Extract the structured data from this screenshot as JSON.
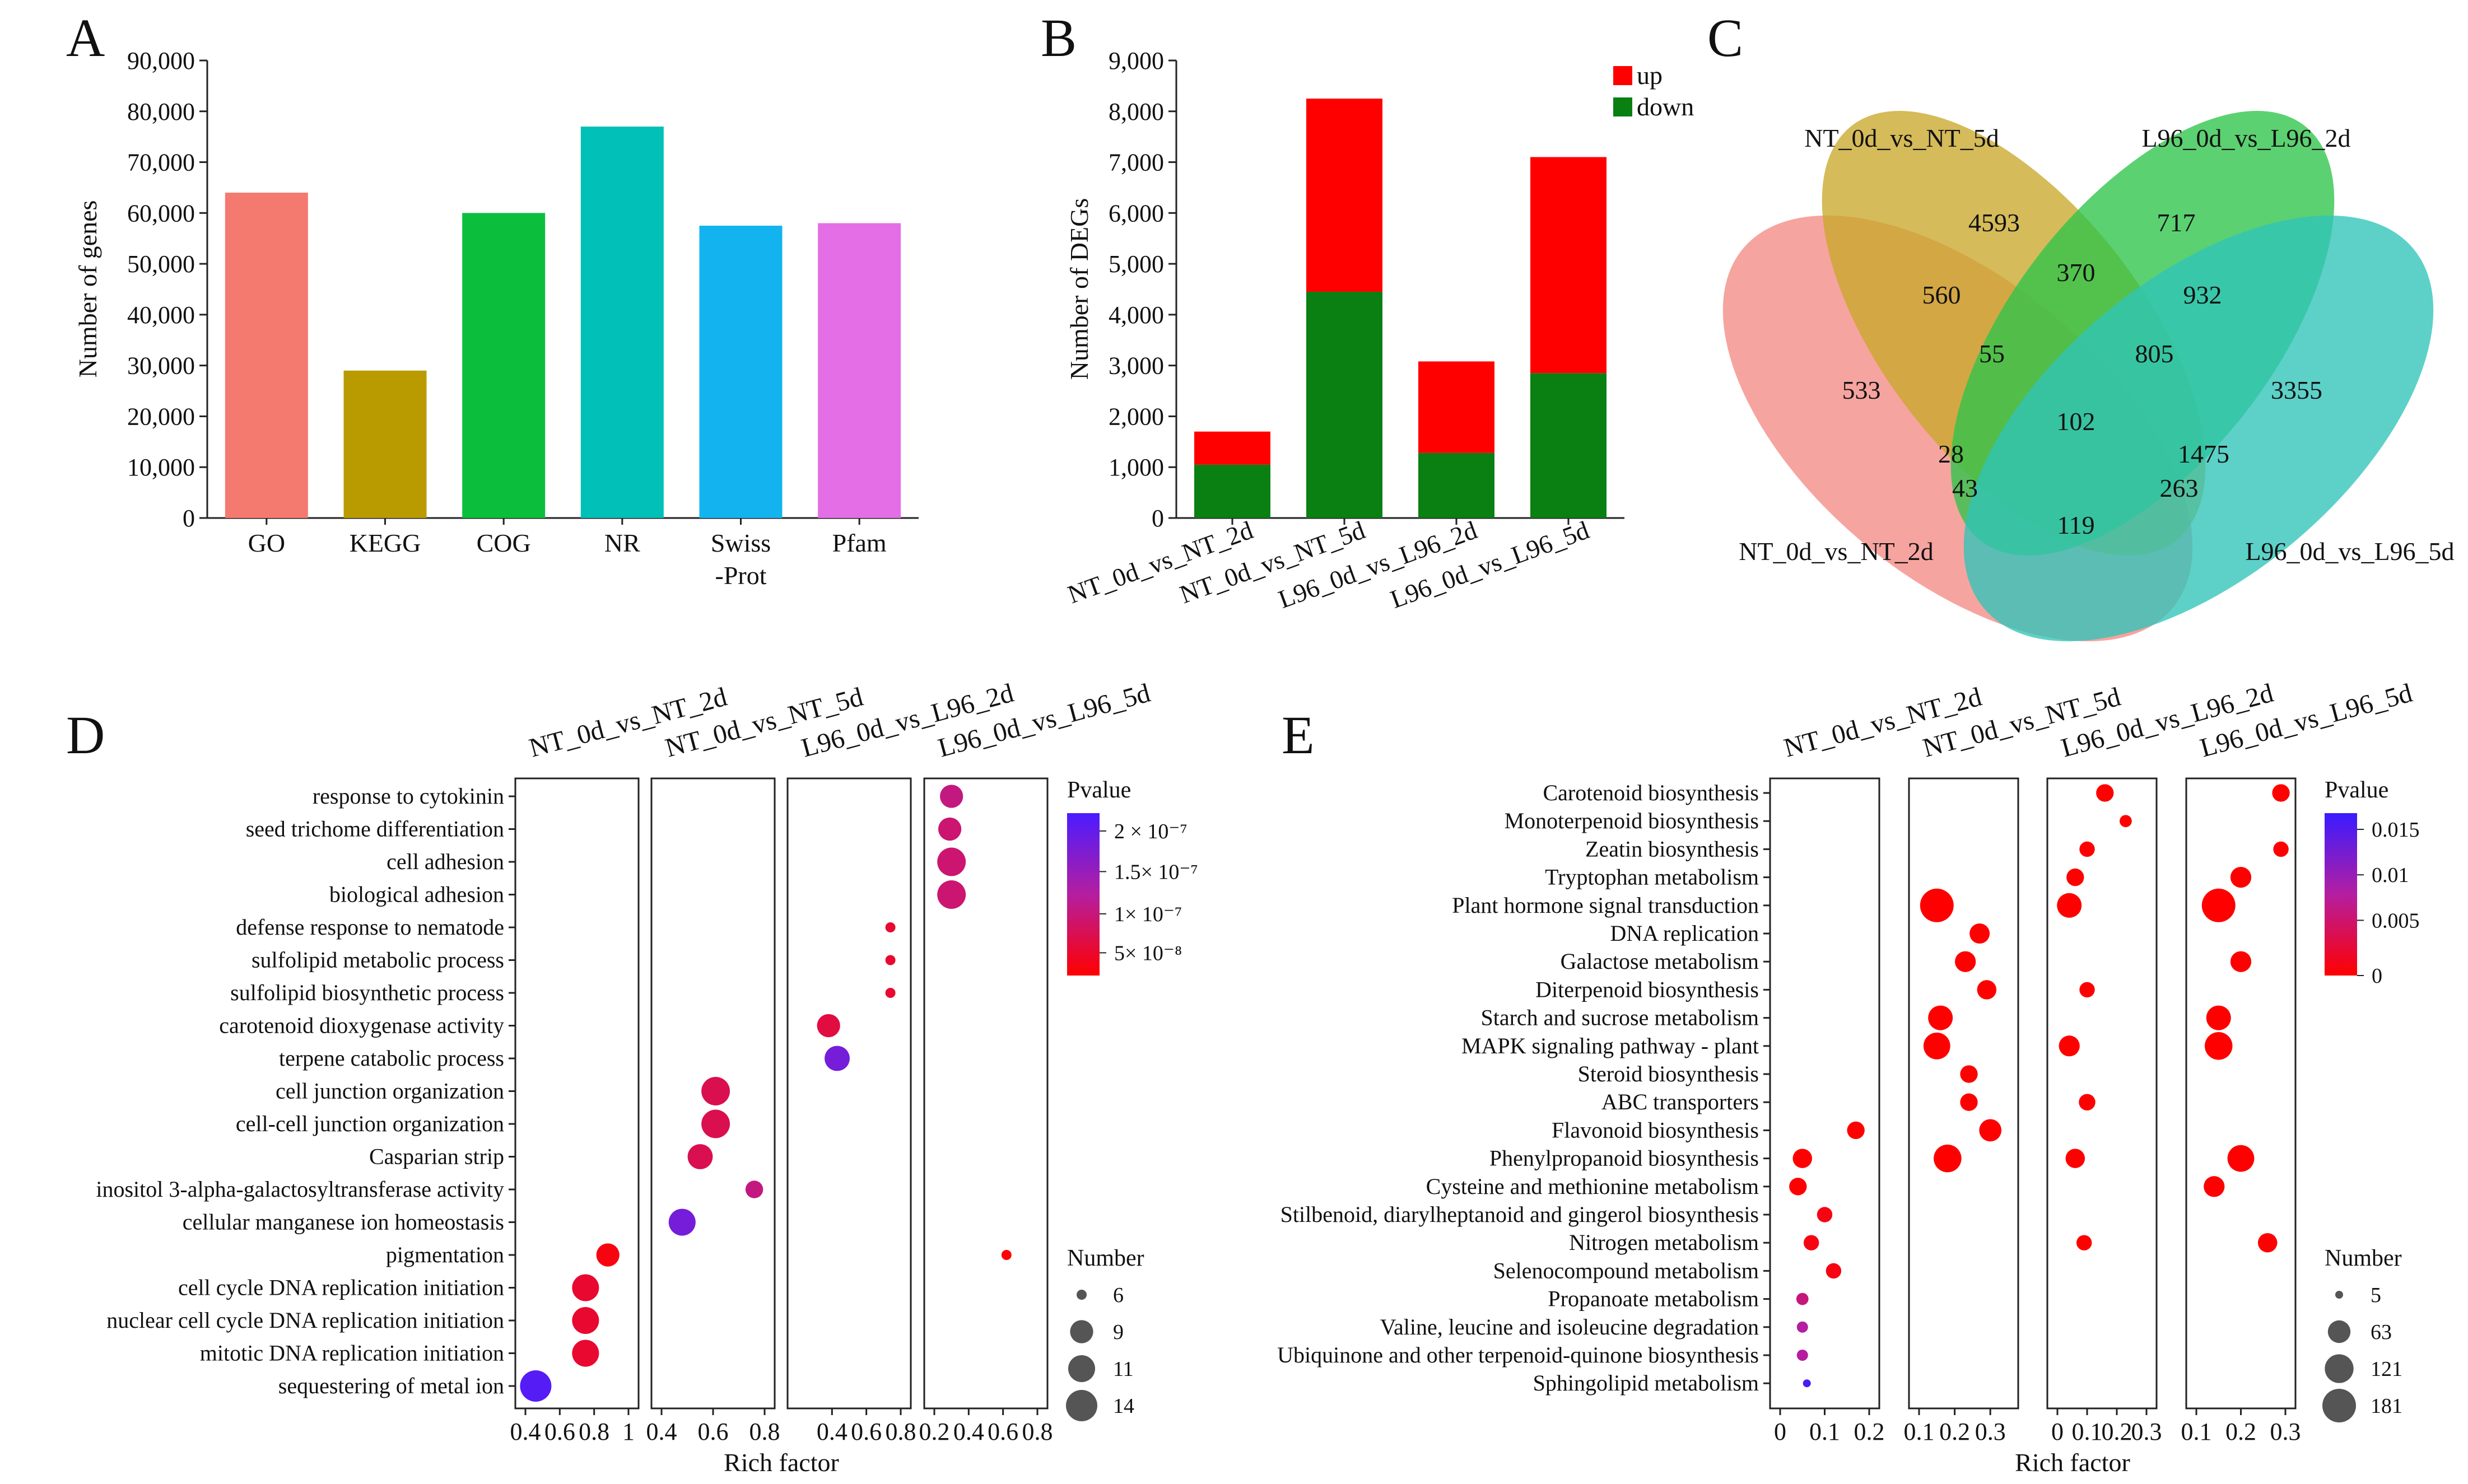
{
  "panels": {
    "a": "A",
    "b": "B",
    "c": "C",
    "d": "D",
    "e": "E"
  },
  "chart_data": [
    {
      "type": "bar",
      "panel": "A",
      "categories": [
        "GO",
        "KEGG",
        "COG",
        "NR",
        "Swiss\n-Prot",
        "Pfam"
      ],
      "values": [
        64000,
        29000,
        60000,
        77000,
        57500,
        58000
      ],
      "colors": [
        "#f47a6f",
        "#b99b00",
        "#0bbf3c",
        "#00c0b8",
        "#13b3f0",
        "#e46ee6"
      ],
      "title": "",
      "xlabel": "",
      "ylabel": "Number of genes",
      "ylim": [
        0,
        90000
      ],
      "yticks": [
        "0",
        "10,000",
        "20,000",
        "30,000",
        "40,000",
        "50,000",
        "60,000",
        "70,000",
        "80,000",
        "90,000"
      ]
    },
    {
      "type": "bar",
      "panel": "B",
      "stacked": true,
      "categories": [
        "NT_0d_vs_NT_2d",
        "NT_0d_vs_NT_5d",
        "L96_0d_vs_L96_2d",
        "L96_0d_vs_L96_5d"
      ],
      "series": [
        {
          "name": "down",
          "color": "#0a7f12",
          "values": [
            1050,
            4450,
            1280,
            2850
          ]
        },
        {
          "name": "up",
          "color": "#ff0000",
          "values": [
            650,
            3800,
            1800,
            4250
          ]
        }
      ],
      "legend": [
        "up",
        "down"
      ],
      "xlabel": "",
      "ylabel": "Number of DEGs",
      "ylim": [
        0,
        9000
      ],
      "yticks": [
        "0",
        "1,000",
        "2,000",
        "3,000",
        "4,000",
        "5,000",
        "6,000",
        "7,000",
        "8,000",
        "9,000"
      ]
    },
    {
      "type": "venn",
      "panel": "C",
      "sets": [
        "NT_0d_vs_NT_5d",
        "L96_0d_vs_L96_2d",
        "NT_0d_vs_NT_2d",
        "L96_0d_vs_L96_5d"
      ],
      "set_colors": [
        "#c9a82a",
        "#2ec44a",
        "#f38a85",
        "#2fc4b8"
      ],
      "regions": [
        "4593",
        "717",
        "560",
        "370",
        "932",
        "533",
        "55",
        "805",
        "3355",
        "102",
        "28",
        "1475",
        "43",
        "263",
        "119"
      ]
    },
    {
      "type": "scatter",
      "panel": "D",
      "subtype": "bubble-facet",
      "facets": [
        "NT_0d_vs_NT_2d",
        "NT_0d_vs_NT_5d",
        "L96_0d_vs_L96_2d",
        "L96_0d_vs_L96_5d"
      ],
      "facet_xlim": [
        [
          0.4,
          1.0
        ],
        [
          0.4,
          0.8
        ],
        [
          0.2,
          0.8
        ],
        [
          0.2,
          0.8
        ]
      ],
      "facet_xticks": [
        [
          "0.4",
          "0.6",
          "0.8",
          "1"
        ],
        [
          "0.4",
          "0.6",
          "0.8"
        ],
        [
          "0.4",
          "0.6",
          "0.8"
        ],
        [
          "0.2",
          "0.4",
          "0.6",
          "0.8"
        ]
      ],
      "categories": [
        "response to cytokinin",
        "seed trichome differentiation",
        "cell adhesion",
        "biological adhesion",
        "defense response to nematode",
        "sulfolipid metabolic process",
        "sulfolipid biosynthetic process",
        "carotenoid dioxygenase activity",
        "terpene catabolic process",
        "cell junction organization",
        "cell-cell junction organization",
        "Casparian strip",
        "inositol 3-alpha-galactosyltransferase activity",
        "cellular manganese ion homeostasis",
        "pigmentation",
        "cell cycle DNA replication initiation",
        "nuclear cell cycle DNA replication initiation",
        "mitotic DNA replication initiation",
        "sequestering of metal ion"
      ],
      "points": [
        {
          "facet": 3,
          "cat": 0,
          "x": 0.3,
          "p": 1.1e-07,
          "n": 9
        },
        {
          "facet": 3,
          "cat": 1,
          "x": 0.29,
          "p": 1e-07,
          "n": 9
        },
        {
          "facet": 3,
          "cat": 2,
          "x": 0.3,
          "p": 1e-07,
          "n": 12
        },
        {
          "facet": 3,
          "cat": 3,
          "x": 0.3,
          "p": 1e-07,
          "n": 12
        },
        {
          "facet": 2,
          "cat": 4,
          "x": 0.74,
          "p": 6e-08,
          "n": 6
        },
        {
          "facet": 2,
          "cat": 5,
          "x": 0.74,
          "p": 6e-08,
          "n": 6
        },
        {
          "facet": 2,
          "cat": 6,
          "x": 0.74,
          "p": 6e-08,
          "n": 6
        },
        {
          "facet": 2,
          "cat": 7,
          "x": 0.38,
          "p": 7e-08,
          "n": 9
        },
        {
          "facet": 2,
          "cat": 8,
          "x": 0.43,
          "p": 1.9e-07,
          "n": 10
        },
        {
          "facet": 1,
          "cat": 9,
          "x": 0.61,
          "p": 8e-08,
          "n": 12
        },
        {
          "facet": 1,
          "cat": 10,
          "x": 0.61,
          "p": 8e-08,
          "n": 12
        },
        {
          "facet": 1,
          "cat": 11,
          "x": 0.55,
          "p": 8e-08,
          "n": 10
        },
        {
          "facet": 1,
          "cat": 12,
          "x": 0.76,
          "p": 1.1e-07,
          "n": 7
        },
        {
          "facet": 1,
          "cat": 13,
          "x": 0.48,
          "p": 1.9e-07,
          "n": 11
        },
        {
          "facet": 3,
          "cat": 14,
          "x": 0.62,
          "p": 3e-08,
          "n": 6
        },
        {
          "facet": 0,
          "cat": 14,
          "x": 0.88,
          "p": 4e-08,
          "n": 9
        },
        {
          "facet": 0,
          "cat": 15,
          "x": 0.75,
          "p": 6e-08,
          "n": 11
        },
        {
          "facet": 0,
          "cat": 16,
          "x": 0.75,
          "p": 6e-08,
          "n": 11
        },
        {
          "facet": 0,
          "cat": 17,
          "x": 0.75,
          "p": 6e-08,
          "n": 11
        },
        {
          "facet": 0,
          "cat": 18,
          "x": 0.46,
          "p": 2.2e-07,
          "n": 14
        }
      ],
      "xlabel": "Rich factor",
      "color_legend": {
        "title": "Pvalue",
        "labels": [
          "2 × 10⁻⁷",
          "1.5× 10⁻⁷",
          "1× 10⁻⁷",
          "5× 10⁻⁸"
        ],
        "range": [
          3e-08,
          2.3e-07
        ],
        "low_color": "#ff0000",
        "high_color": "#4b1cff"
      },
      "size_legend": {
        "title": "Number",
        "values": [
          6,
          9,
          11,
          14
        ],
        "labels": [
          "6",
          "9",
          "11",
          "14"
        ]
      }
    },
    {
      "type": "scatter",
      "panel": "E",
      "subtype": "bubble-facet",
      "facets": [
        "NT_0d_vs_NT_2d",
        "NT_0d_vs_NT_5d",
        "L96_0d_vs_L96_2d",
        "L96_0d_vs_L96_5d"
      ],
      "facet_xlim": [
        [
          0,
          0.2
        ],
        [
          0.1,
          0.35
        ],
        [
          0,
          0.3
        ],
        [
          0.1,
          0.3
        ]
      ],
      "facet_xticks": [
        [
          "0",
          "0.1",
          "0.2"
        ],
        [
          "0.1",
          "0.2",
          "0.3"
        ],
        [
          "0",
          "0.1",
          "0.2",
          "0.3"
        ],
        [
          "0.1",
          "0.2",
          "0.3"
        ]
      ],
      "categories": [
        "Carotenoid biosynthesis",
        "Monoterpenoid biosynthesis",
        "Zeatin biosynthesis",
        "Tryptophan metabolism",
        "Plant hormone signal transduction",
        "DNA replication",
        "Galactose metabolism",
        "Diterpenoid biosynthesis",
        "Starch and sucrose metabolism",
        "MAPK signaling pathway - plant",
        "Steroid biosynthesis",
        "ABC transporters",
        "Flavonoid biosynthesis",
        "Phenylpropanoid biosynthesis",
        "Cysteine and methionine metabolism",
        "Stilbenoid, diarylheptanoid and gingerol biosynthesis",
        "Nitrogen metabolism",
        "Selenocompound metabolism",
        "Propanoate metabolism",
        "Valine, leucine and isoleucine degradation",
        "Ubiquinone and other terpenoid-quinone biosynthesis",
        "Sphingolipid metabolism"
      ],
      "points": [
        {
          "facet": 2,
          "cat": 0,
          "x": 0.16,
          "p": 0,
          "n": 30
        },
        {
          "facet": 3,
          "cat": 0,
          "x": 0.29,
          "p": 0,
          "n": 30
        },
        {
          "facet": 2,
          "cat": 1,
          "x": 0.23,
          "p": 0,
          "n": 10
        },
        {
          "facet": 2,
          "cat": 2,
          "x": 0.1,
          "p": 0,
          "n": 20
        },
        {
          "facet": 3,
          "cat": 2,
          "x": 0.29,
          "p": 0,
          "n": 20
        },
        {
          "facet": 2,
          "cat": 3,
          "x": 0.06,
          "p": 0,
          "n": 30
        },
        {
          "facet": 3,
          "cat": 3,
          "x": 0.2,
          "p": 0,
          "n": 50
        },
        {
          "facet": 1,
          "cat": 4,
          "x": 0.15,
          "p": 0,
          "n": 181
        },
        {
          "facet": 2,
          "cat": 4,
          "x": 0.04,
          "p": 0,
          "n": 80
        },
        {
          "facet": 3,
          "cat": 4,
          "x": 0.15,
          "p": 0,
          "n": 181
        },
        {
          "facet": 1,
          "cat": 5,
          "x": 0.27,
          "p": 0,
          "n": 45
        },
        {
          "facet": 1,
          "cat": 6,
          "x": 0.23,
          "p": 0,
          "n": 50
        },
        {
          "facet": 3,
          "cat": 6,
          "x": 0.2,
          "p": 0,
          "n": 50
        },
        {
          "facet": 1,
          "cat": 7,
          "x": 0.29,
          "p": 0,
          "n": 40
        },
        {
          "facet": 2,
          "cat": 7,
          "x": 0.1,
          "p": 0,
          "n": 20
        },
        {
          "facet": 1,
          "cat": 8,
          "x": 0.16,
          "p": 0,
          "n": 80
        },
        {
          "facet": 3,
          "cat": 8,
          "x": 0.15,
          "p": 0,
          "n": 80
        },
        {
          "facet": 1,
          "cat": 9,
          "x": 0.15,
          "p": 0,
          "n": 100
        },
        {
          "facet": 2,
          "cat": 9,
          "x": 0.04,
          "p": 0,
          "n": 50
        },
        {
          "facet": 3,
          "cat": 9,
          "x": 0.15,
          "p": 0,
          "n": 110
        },
        {
          "facet": 1,
          "cat": 10,
          "x": 0.24,
          "p": 0,
          "n": 30
        },
        {
          "facet": 1,
          "cat": 11,
          "x": 0.24,
          "p": 0,
          "n": 30
        },
        {
          "facet": 2,
          "cat": 11,
          "x": 0.1,
          "p": 0,
          "n": 25
        },
        {
          "facet": 0,
          "cat": 12,
          "x": 0.17,
          "p": 0,
          "n": 30
        },
        {
          "facet": 1,
          "cat": 12,
          "x": 0.3,
          "p": 0,
          "n": 60
        },
        {
          "facet": 0,
          "cat": 13,
          "x": 0.05,
          "p": 0,
          "n": 40
        },
        {
          "facet": 1,
          "cat": 13,
          "x": 0.18,
          "p": 0,
          "n": 110
        },
        {
          "facet": 2,
          "cat": 13,
          "x": 0.06,
          "p": 0,
          "n": 40
        },
        {
          "facet": 3,
          "cat": 13,
          "x": 0.2,
          "p": 0,
          "n": 100
        },
        {
          "facet": 0,
          "cat": 14,
          "x": 0.04,
          "p": 0,
          "n": 30
        },
        {
          "facet": 3,
          "cat": 14,
          "x": 0.14,
          "p": 0,
          "n": 50
        },
        {
          "facet": 0,
          "cat": 15,
          "x": 0.1,
          "p": 0.001,
          "n": 20
        },
        {
          "facet": 0,
          "cat": 16,
          "x": 0.07,
          "p": 0.001,
          "n": 20
        },
        {
          "facet": 2,
          "cat": 16,
          "x": 0.09,
          "p": 0,
          "n": 20
        },
        {
          "facet": 3,
          "cat": 16,
          "x": 0.26,
          "p": 0,
          "n": 40
        },
        {
          "facet": 0,
          "cat": 17,
          "x": 0.12,
          "p": 0.001,
          "n": 20
        },
        {
          "facet": 0,
          "cat": 18,
          "x": 0.05,
          "p": 0.007,
          "n": 10
        },
        {
          "facet": 0,
          "cat": 19,
          "x": 0.05,
          "p": 0.009,
          "n": 8
        },
        {
          "facet": 0,
          "cat": 20,
          "x": 0.05,
          "p": 0.009,
          "n": 8
        },
        {
          "facet": 0,
          "cat": 21,
          "x": 0.06,
          "p": 0.017,
          "n": 5
        }
      ],
      "xlabel": "Rich factor",
      "color_legend": {
        "title": "Pvalue",
        "labels": [
          "0.015",
          "0.01",
          "0.005",
          "0"
        ],
        "range": [
          0,
          0.018
        ],
        "low_color": "#ff0000",
        "high_color": "#3a1cff"
      },
      "size_legend": {
        "title": "Number",
        "values": [
          5,
          63,
          121,
          181
        ],
        "labels": [
          "5",
          "63",
          "121",
          "181"
        ]
      }
    }
  ]
}
